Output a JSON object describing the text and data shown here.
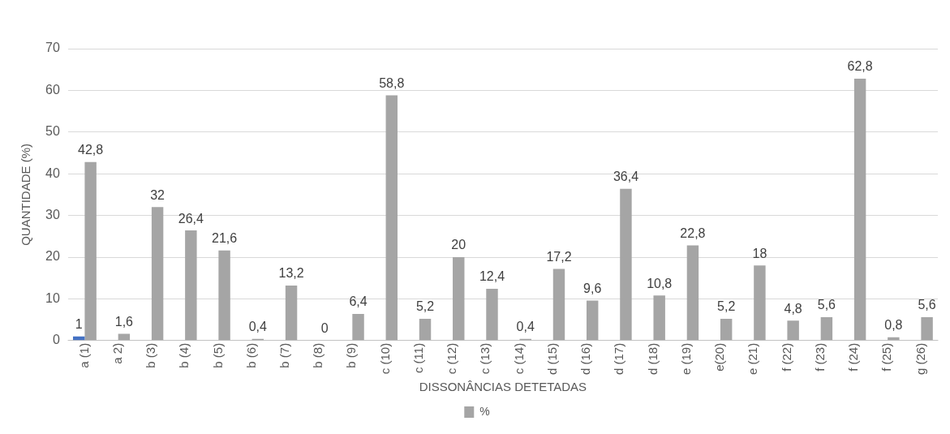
{
  "chart_data": {
    "type": "bar",
    "xlabel": "DISSONÂNCIAS DETETADAS",
    "ylabel": "QUANTIDADE (%)",
    "categories": [
      "a (1)",
      "a 2)",
      "b (3)",
      "b (4)",
      "b (5)",
      "b (6)",
      "b (7)",
      "b (8)",
      "b (9)",
      "c (10)",
      "c (11)",
      "c (12)",
      "c (13)",
      "c (14)",
      "d (15)",
      "d (16)",
      "d (17)",
      "d (18)",
      "e (19)",
      "e(20)",
      "e (21)",
      "f (22)",
      "f (23)",
      "f (24)",
      "f (25)",
      "g (26)"
    ],
    "series": [
      {
        "color": "#4472c4",
        "values": [
          1,
          null,
          null,
          null,
          null,
          null,
          null,
          null,
          null,
          null,
          null,
          null,
          null,
          null,
          null,
          null,
          null,
          null,
          null,
          null,
          null,
          null,
          null,
          null,
          null,
          null
        ],
        "value_labels": [
          "1",
          null,
          null,
          null,
          null,
          null,
          null,
          null,
          null,
          null,
          null,
          null,
          null,
          null,
          null,
          null,
          null,
          null,
          null,
          null,
          null,
          null,
          null,
          null,
          null,
          null
        ]
      },
      {
        "name": "%",
        "color": "#a5a5a5",
        "values": [
          42.8,
          1.6,
          32,
          26.4,
          21.6,
          0.4,
          13.2,
          0,
          6.4,
          58.8,
          5.2,
          20,
          12.4,
          0.4,
          17.2,
          9.6,
          36.4,
          10.8,
          22.8,
          5.2,
          18,
          4.8,
          5.6,
          62.8,
          0.8,
          5.6
        ],
        "value_labels": [
          "42,8",
          "1,6",
          "32",
          "26,4",
          "21,6",
          "0,4",
          "13,2",
          "0",
          "6,4",
          "58,8",
          "5,2",
          "20",
          "12,4",
          "0,4",
          "17,2",
          "9,6",
          "36,4",
          "10,8",
          "22,8",
          "5,2",
          "18",
          "4,8",
          "5,6",
          "62,8",
          "0,8",
          "5,6"
        ]
      }
    ],
    "ylim": [
      0,
      70
    ],
    "yticks": [
      0,
      10,
      20,
      30,
      40,
      50,
      60,
      70
    ],
    "grid": "y",
    "legend": "bottom"
  }
}
